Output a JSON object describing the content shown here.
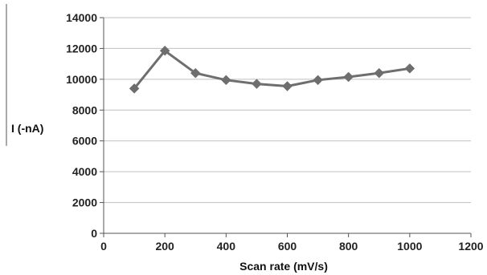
{
  "chart_data": {
    "type": "line",
    "title": "",
    "xlabel": "Scan rate (mV/s)",
    "ylabel": "I (-nA)",
    "xlim": [
      0,
      1200
    ],
    "ylim": [
      0,
      14000
    ],
    "xticks": [
      "0",
      "200",
      "400",
      "600",
      "800",
      "1000",
      "1200"
    ],
    "yticks": [
      "0",
      "2000",
      "4000",
      "6000",
      "8000",
      "10000",
      "12000",
      "14000"
    ],
    "grid": "horizontal",
    "legend": "none",
    "marker": "diamond",
    "series_color": "#6e6e6e",
    "grid_color": "#bfbfbf",
    "series": [
      {
        "x": [
          100,
          200,
          300,
          400,
          500,
          600,
          700,
          800,
          900,
          1000
        ],
        "y": [
          9400,
          11850,
          10400,
          9950,
          9700,
          9550,
          9950,
          10150,
          10400,
          10700
        ]
      }
    ]
  }
}
